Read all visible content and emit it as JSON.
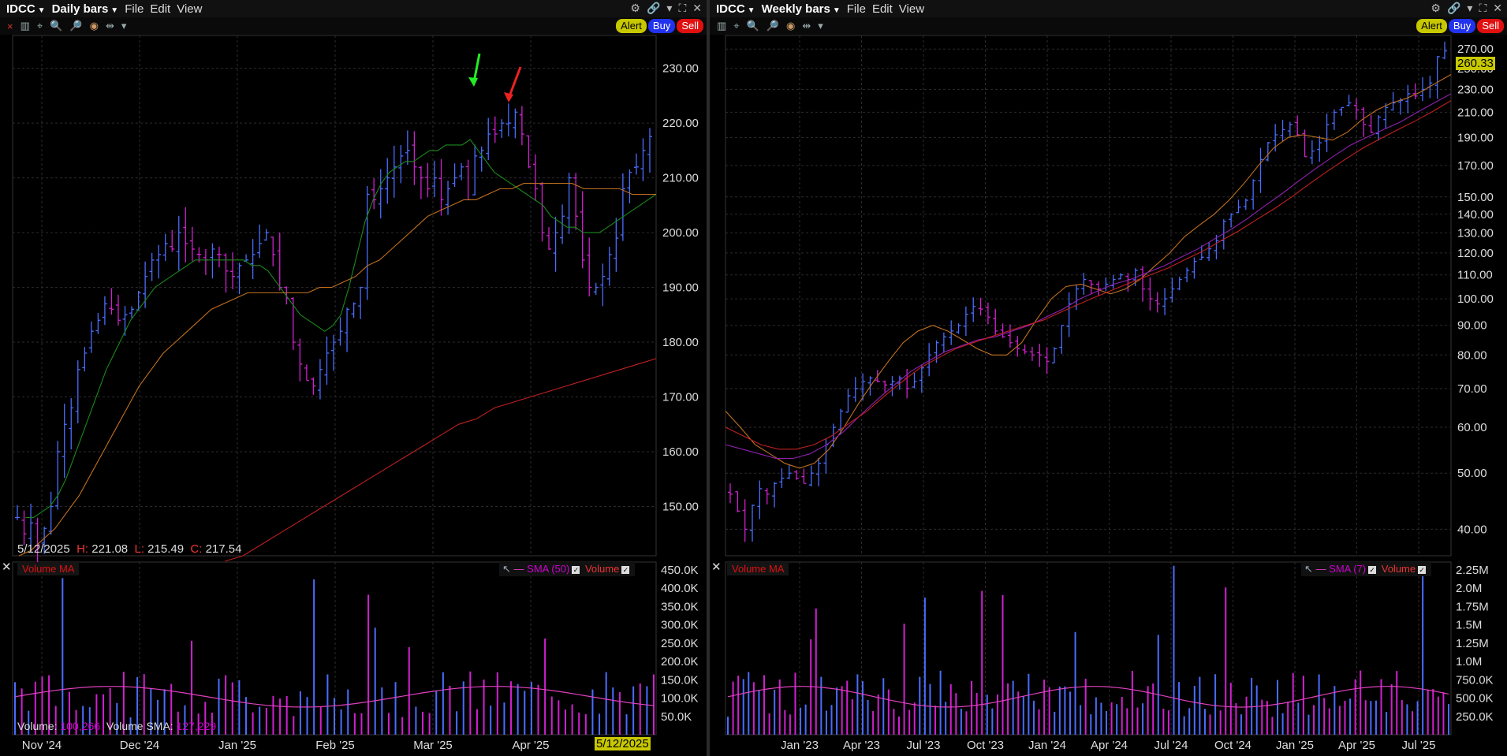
{
  "left": {
    "menubar": {
      "symbol": "IDCC",
      "period": "Daily bars",
      "file": "File",
      "edit": "Edit",
      "view": "View"
    },
    "buttons": {
      "alert": "Alert",
      "buy": "Buy",
      "sell": "Sell"
    },
    "info": {
      "date": "5/12/2025",
      "h_label": "H:",
      "h": "221.08",
      "l_label": "L:",
      "l": "215.49",
      "c_label": "C:",
      "c": "217.54"
    },
    "volume_panel": {
      "title": "Volume MA",
      "sma_label": "SMA (50)",
      "volume_label": "Volume",
      "readout_volume_label": "Volume:",
      "readout_volume": "100,266",
      "readout_sma_label": "Volume SMA:",
      "readout_sma": "127,229"
    },
    "date_tag": "5/12/2025"
  },
  "right": {
    "menubar": {
      "symbol": "IDCC",
      "period": "Weekly bars",
      "file": "File",
      "edit": "Edit",
      "view": "View"
    },
    "buttons": {
      "alert": "Alert",
      "buy": "Buy",
      "sell": "Sell"
    },
    "price_tag": "260.33",
    "volume_panel": {
      "title": "Volume MA",
      "sma_label": "SMA (7)",
      "volume_label": "Volume"
    }
  },
  "colors": {
    "up": "#4a6cff",
    "down": "#d020d0",
    "ma_short": "#1a8a1a",
    "ma_mid": "#c07020",
    "ma_long": "#c02020",
    "ma_purple": "#9020b0",
    "vol_sma": "#e040c0",
    "accent_yellow": "#c8c800"
  },
  "chart_data": [
    {
      "type": "ohlc",
      "title": "",
      "series_name": "IDCC Daily bars",
      "price_scale": "linear",
      "x_ticks": [
        "Nov '24",
        "Dec '24",
        "Jan '25",
        "Feb '25",
        "Mar '25",
        "Apr '25"
      ],
      "y_ticks": [
        150.0,
        160.0,
        170.0,
        180.0,
        190.0,
        200.0,
        210.0,
        220.0,
        230.0
      ],
      "ylim": [
        141,
        236
      ],
      "last_bar": {
        "date": "5/12/2025",
        "high": 221.08,
        "low": 215.49,
        "close": 217.54
      },
      "closes": [
        148,
        145,
        147,
        143,
        146,
        150,
        160,
        165,
        168,
        175,
        178,
        182,
        184,
        187,
        186,
        184,
        185,
        186,
        189,
        192,
        195,
        196,
        198,
        197,
        200,
        198,
        197,
        196,
        195,
        197,
        196,
        193,
        192,
        194,
        195,
        196,
        198,
        200,
        196,
        190,
        188,
        180,
        176,
        173,
        172,
        175,
        178,
        180,
        182,
        186,
        187,
        190,
        207,
        206,
        208,
        210,
        212,
        214,
        215,
        212,
        210,
        208,
        210,
        206,
        208,
        210,
        212,
        206,
        214,
        215,
        218,
        218,
        220,
        220,
        222,
        218,
        212,
        208,
        200,
        197,
        200,
        203,
        210,
        203,
        195,
        190,
        190,
        192,
        196,
        199,
        208,
        211,
        212,
        215,
        217.54
      ],
      "ma_short_name": "",
      "ma_short": [
        148,
        148,
        149,
        150,
        152,
        155,
        159,
        163,
        167,
        171,
        175,
        178,
        181,
        184,
        186,
        188,
        190,
        191,
        192,
        193,
        194,
        195,
        195,
        195,
        195,
        195,
        195,
        195,
        194,
        194,
        193,
        191,
        189,
        187,
        185,
        184,
        183,
        182,
        183,
        185,
        190,
        196,
        202,
        206,
        209,
        211,
        212,
        213,
        213,
        214,
        215,
        215,
        216,
        216,
        216,
        217,
        215,
        213,
        211,
        210,
        209,
        208,
        207,
        206,
        205,
        203,
        202,
        201,
        201,
        200,
        200,
        200,
        201,
        202,
        203,
        204,
        205,
        206,
        207
      ],
      "ma_mid_name": "",
      "ma_mid": [
        141,
        142,
        144,
        146,
        149,
        152,
        156,
        160,
        164,
        168,
        172,
        175,
        178,
        180,
        182,
        184,
        186,
        187,
        188,
        189,
        189,
        189,
        189,
        189,
        189,
        190,
        190,
        191,
        192,
        194,
        195,
        197,
        199,
        201,
        203,
        204,
        205,
        206,
        206,
        207,
        208,
        208,
        209,
        209,
        209,
        209,
        209,
        208,
        208,
        208,
        208,
        207,
        207,
        207
      ],
      "ma_long_name": "",
      "ma_long": [
        140,
        141,
        143,
        145,
        147,
        149,
        151,
        153,
        155,
        157,
        159,
        161,
        163,
        165,
        166,
        168,
        169,
        170,
        171,
        172,
        173,
        174,
        175,
        176,
        177
      ],
      "volume": {
        "ylim": [
          0,
          470000
        ],
        "y_ticks": [
          "50.0K",
          "100.0K",
          "150.0K",
          "200.0K",
          "250.0K",
          "300.0K",
          "350.0K",
          "400.0K",
          "450.0K"
        ],
        "last_volume": 100266,
        "last_sma": 127229
      }
    },
    {
      "type": "ohlc",
      "title": "",
      "series_name": "IDCC Weekly bars",
      "price_scale": "log",
      "x_ticks": [
        "Jan '23",
        "Apr '23",
        "Jul '23",
        "Oct '23",
        "Jan '24",
        "Apr '24",
        "Jul '24",
        "Oct '24",
        "Jan '25",
        "Apr '25",
        "Jul '25"
      ],
      "y_ticks": [
        40.0,
        50.0,
        60.0,
        70.0,
        80.0,
        90.0,
        100.0,
        110.0,
        120.0,
        130.0,
        140.0,
        150.0,
        170.0,
        190.0,
        210.0,
        230.0,
        250.0,
        270.0
      ],
      "ylim": [
        36,
        285
      ],
      "last_price": 260.33,
      "closes": [
        46,
        43,
        40,
        44,
        47,
        46,
        48,
        49,
        50,
        49,
        48,
        50,
        52,
        56,
        60,
        64,
        68,
        70,
        72,
        73,
        72,
        71,
        72,
        73,
        70,
        72,
        76,
        80,
        84,
        86,
        88,
        90,
        94,
        97,
        96,
        93,
        88,
        86,
        84,
        82,
        81,
        80,
        80,
        78,
        82,
        90,
        98,
        104,
        108,
        106,
        104,
        106,
        108,
        110,
        108,
        112,
        104,
        100,
        98,
        100,
        104,
        108,
        112,
        116,
        118,
        122,
        126,
        136,
        140,
        144,
        148,
        160,
        174,
        186,
        192,
        196,
        200,
        192,
        176,
        180,
        186,
        200,
        210,
        214,
        218,
        212,
        200,
        194,
        206,
        214,
        218,
        220,
        226,
        224,
        230,
        236,
        262,
        268
      ],
      "volume": {
        "ylim": [
          0,
          2350000
        ],
        "y_ticks": [
          "250.0K",
          "500.0K",
          "750.0K",
          "1.0M",
          "1.25M",
          "1.5M",
          "1.75M",
          "2.0M",
          "2.25M"
        ]
      }
    }
  ]
}
